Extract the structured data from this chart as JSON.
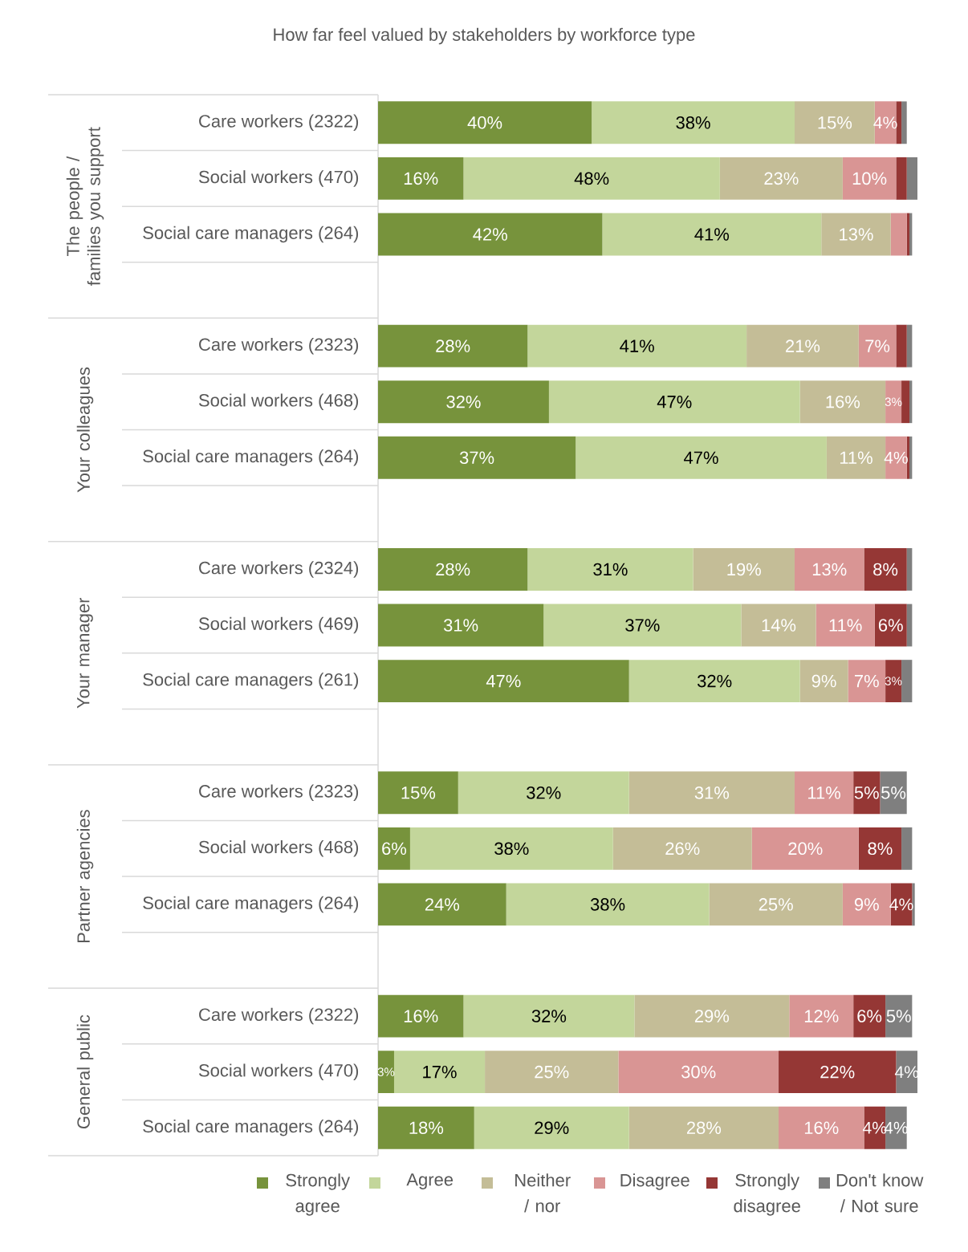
{
  "chart_data": {
    "type": "bar",
    "orientation": "horizontal",
    "stacked": true,
    "title": "How far feel valued by stakeholders by workforce type",
    "categories": [
      "Care workers (2322)",
      "Social workers (470)",
      "Social care managers (264)",
      null,
      "Care workers (2323)",
      "Social workers (468)",
      "Social care managers (264)",
      null,
      "Care workers (2324)",
      "Social workers (469)",
      "Social care managers (261)",
      null,
      "Care workers (2323)",
      "Social workers (468)",
      "Social care managers (264)",
      null,
      "Care workers (2322)",
      "Social workers (470)",
      "Social care managers (264)"
    ],
    "annotations": [
      "The people / families you support",
      "Your colleagues",
      "Your manager",
      "Partner agencies",
      "General public"
    ],
    "legend": "bottom",
    "series": [
      {
        "name": "Strongly agree",
        "color": "#77933c",
        "values": [
          40,
          16,
          42,
          null,
          28,
          32,
          37,
          null,
          28,
          31,
          47,
          null,
          15,
          6,
          24,
          null,
          16,
          3,
          18
        ],
        "value_labels": [
          "40%",
          "16%",
          "42%",
          null,
          "28%",
          "32%",
          "37%",
          null,
          "28%",
          "31%",
          "47%",
          null,
          "15%",
          "6%",
          "24%",
          null,
          "16%",
          "3%",
          "18%"
        ]
      },
      {
        "name": "Agree",
        "color": "#c3d69b",
        "values": [
          38,
          48,
          41,
          null,
          41,
          47,
          47,
          null,
          31,
          37,
          32,
          null,
          32,
          38,
          38,
          null,
          32,
          17,
          29
        ],
        "value_labels": [
          "38%",
          "48%",
          "41%",
          null,
          "41%",
          "47%",
          "47%",
          null,
          "31%",
          "37%",
          "32%",
          null,
          "32%",
          "38%",
          "38%",
          null,
          "32%",
          "17%",
          "29%"
        ]
      },
      {
        "name": "Neither / nor",
        "color": "#c4bd97",
        "values": [
          15,
          23,
          13,
          null,
          21,
          16,
          11,
          null,
          19,
          14,
          9,
          null,
          31,
          26,
          25,
          null,
          29,
          25,
          28
        ],
        "value_labels": [
          "15%",
          "23%",
          "13%",
          null,
          "21%",
          "16%",
          "11%",
          null,
          "19%",
          "14%",
          "9%",
          null,
          "31%",
          "26%",
          "25%",
          null,
          "29%",
          "25%",
          "28%"
        ]
      },
      {
        "name": "Disagree",
        "color": "#d99594",
        "values": [
          4,
          10,
          3,
          null,
          7,
          3,
          4,
          null,
          13,
          11,
          7,
          null,
          11,
          20,
          9,
          null,
          12,
          30,
          16
        ],
        "value_labels": [
          "4%",
          "10%",
          null,
          null,
          "7%",
          "3%",
          "4%",
          null,
          "13%",
          "11%",
          "7%",
          null,
          "11%",
          "20%",
          "9%",
          null,
          "12%",
          "30%",
          "16%"
        ]
      },
      {
        "name": "Strongly disagree",
        "color": "#953735",
        "values": [
          1,
          2,
          0.5,
          null,
          2,
          1.5,
          0.5,
          null,
          8,
          6,
          3,
          null,
          5,
          8,
          4,
          null,
          6,
          22,
          4
        ],
        "value_labels": [
          null,
          null,
          null,
          null,
          null,
          null,
          null,
          null,
          "8%",
          "6%",
          "3%",
          null,
          "5%",
          "8%",
          "4%",
          null,
          "6%",
          "22%",
          "4%"
        ]
      },
      {
        "name": "Don't know / Not sure",
        "color": "#7f7f7f",
        "values": [
          1,
          2,
          0.5,
          null,
          1,
          0.5,
          0.5,
          null,
          1,
          1,
          2,
          null,
          5,
          2,
          0.5,
          null,
          5,
          4,
          4
        ],
        "value_labels": [
          null,
          null,
          null,
          null,
          null,
          null,
          null,
          null,
          null,
          null,
          null,
          null,
          "5%",
          null,
          null,
          null,
          "5%",
          "4%",
          "4%"
        ]
      }
    ]
  }
}
